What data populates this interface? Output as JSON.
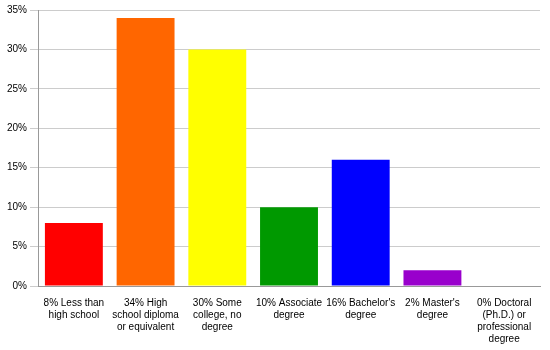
{
  "chart_data": {
    "type": "bar",
    "categories": [
      "8% Less than high school",
      "34% High school diploma or equivalent",
      "30% Some college, no degree",
      "10% Associate degree",
      "16% Bachelor's degree",
      "2% Master's degree",
      "0% Doctoral (Ph.D.) or professional degree"
    ],
    "values": [
      8,
      34,
      30,
      10,
      16,
      2,
      0
    ],
    "colors": [
      "#ff0000",
      "#ff6600",
      "#ffff00",
      "#009900",
      "#0000ff",
      "#9900cc",
      "#ff00ff"
    ],
    "ylim": [
      0,
      35
    ],
    "yticks": [
      {
        "value": 0,
        "label": "0%"
      },
      {
        "value": 5,
        "label": "5%"
      },
      {
        "value": 10,
        "label": "10%"
      },
      {
        "value": 15,
        "label": "15%"
      },
      {
        "value": 20,
        "label": "20%"
      },
      {
        "value": 25,
        "label": "25%"
      },
      {
        "value": 30,
        "label": "30%"
      },
      {
        "value": 35,
        "label": "35%"
      }
    ],
    "grid": true
  }
}
